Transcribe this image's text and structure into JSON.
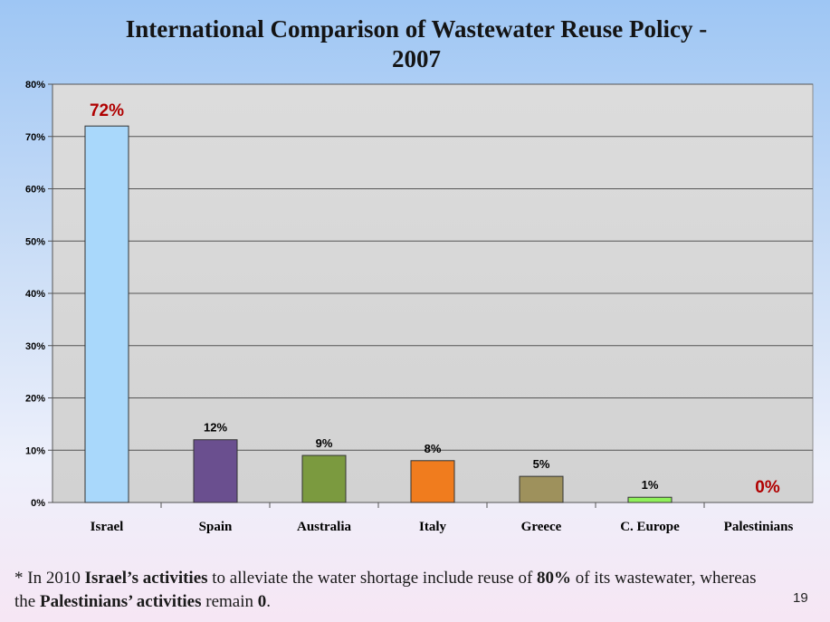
{
  "chart_data": {
    "type": "bar",
    "title": "International Comparison of Wastewater Reuse Policy - 2007",
    "title_lines": [
      "International Comparison of Wastewater Reuse Policy -",
      "2007"
    ],
    "categories": [
      "Israel",
      "Spain",
      "Australia",
      "Italy",
      "Greece",
      "C. Europe",
      "Palestinians"
    ],
    "values": [
      72,
      12,
      9,
      8,
      5,
      1,
      0
    ],
    "data_labels": [
      "72%",
      "12%",
      "9%",
      "8%",
      "5%",
      "1%",
      "0%"
    ],
    "highlighted_labels": [
      0,
      6
    ],
    "bar_colors": [
      "#a9d8fb",
      "#6a4f8f",
      "#7b9a3f",
      "#f07c1e",
      "#9e915c",
      "#8ff05a",
      "#cccccc"
    ],
    "ylim": [
      0,
      80
    ],
    "yticks": [
      0,
      10,
      20,
      30,
      40,
      50,
      60,
      70,
      80
    ],
    "ytick_labels": [
      "0%",
      "10%",
      "20%",
      "30%",
      "40%",
      "50%",
      "60%",
      "70%",
      "80%"
    ],
    "xlabel": "",
    "ylabel": "",
    "grid": true
  },
  "colors": {
    "highlight_label": "#b00000",
    "plot_bg": "#d8d8d8"
  },
  "footnote": {
    "p1": "* In 2010 ",
    "b1": "Israel’s activities",
    "p2": " to alleviate the water shortage include reuse of ",
    "b2": "80%",
    "p3": " of its wastewater, whereas the ",
    "b3": "Palestinians’ activities",
    "p4": " remain ",
    "b4": "0",
    "p5": "."
  },
  "page_number": "19"
}
